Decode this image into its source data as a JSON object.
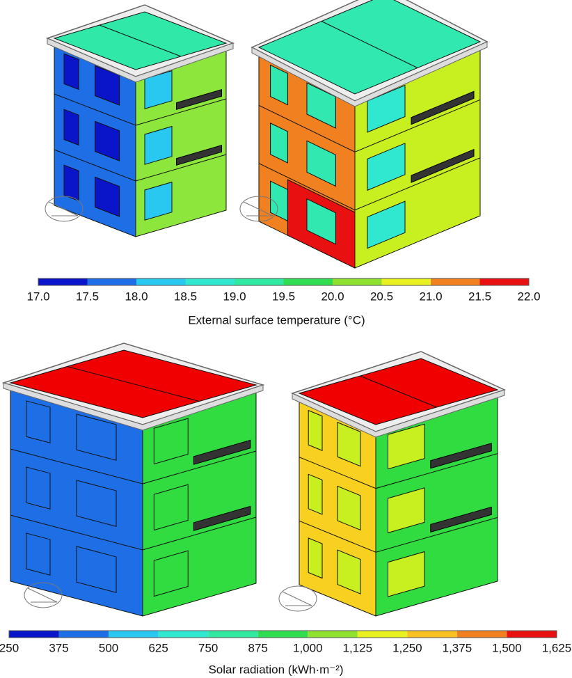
{
  "panels": [
    {
      "ticks": [
        "17.0",
        "17.5",
        "18.0",
        "18.5",
        "19.0",
        "19.5",
        "20.0",
        "20.5",
        "21.0",
        "21.5",
        "22.0"
      ],
      "colors": [
        "#0a14c8",
        "#1e6ee6",
        "#28c8f0",
        "#30e8d0",
        "#30e8a0",
        "#30dc50",
        "#90e030",
        "#e8f020",
        "#f08020",
        "#e81010"
      ],
      "label": "External surface temperature (°C)"
    },
    {
      "ticks": [
        "250",
        "375",
        "500",
        "625",
        "750",
        "875",
        "1,000",
        "1,125",
        "1,250",
        "1,375",
        "1,500",
        "1,625"
      ],
      "colors": [
        "#0a14c8",
        "#1e6ee6",
        "#28c8f0",
        "#30e8d0",
        "#30e8a0",
        "#30dc50",
        "#90e030",
        "#e8f020",
        "#f8c020",
        "#f08020",
        "#e81010"
      ],
      "label": "Solar radiation (kWh·m⁻²)"
    }
  ]
}
